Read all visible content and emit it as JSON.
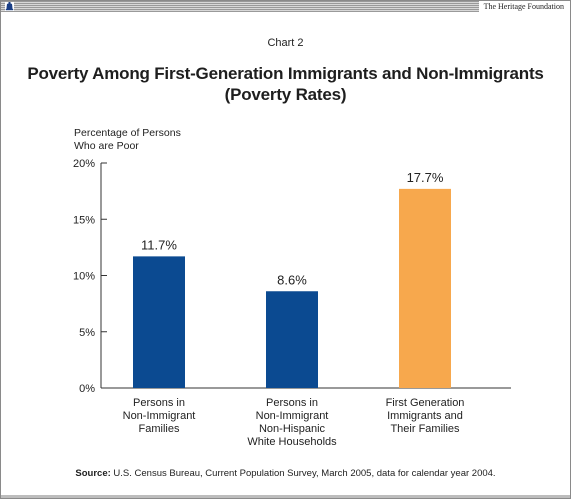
{
  "header": {
    "organization": "The Heritage Foundation",
    "logo_icon": "liberty-bell-icon"
  },
  "chart_number": "Chart 2",
  "title_line1": "Poverty Among First-Generation Immigrants and Non-Immigrants",
  "title_line2": "(Poverty Rates)",
  "y_axis_label_line1": "Percentage of Persons",
  "y_axis_label_line2": "Who are Poor",
  "source_label": "Source:",
  "source_text": " U.S. Census Bureau, Current Population Survey, March 2005, data for calendar year 2004.",
  "chart_data": {
    "type": "bar",
    "title": "Poverty Among First-Generation Immigrants and Non-Immigrants (Poverty Rates)",
    "ylabel": "Percentage of Persons Who are Poor",
    "ylim": [
      0,
      20
    ],
    "yticks": [
      0,
      5,
      10,
      15,
      20
    ],
    "ytick_labels": [
      "0%",
      "5%",
      "10%",
      "15%",
      "20%"
    ],
    "categories": [
      "Persons in Non-Immigrant Families",
      "Persons in Non-Immigrant Non-Hispanic White Households",
      "First Generation Immigrants and Their Families"
    ],
    "category_lines": [
      [
        "Persons in",
        "Non-Immigrant",
        "Families"
      ],
      [
        "Persons in",
        "Non-Immigrant",
        "Non-Hispanic",
        "White Households"
      ],
      [
        "First Generation",
        "Immigrants and",
        "Their Families"
      ]
    ],
    "values": [
      11.7,
      8.6,
      17.7
    ],
    "value_labels": [
      "11.7%",
      "8.6%",
      "17.7%"
    ],
    "colors": [
      "#0b4a91",
      "#0b4a91",
      "#f7a84d"
    ],
    "grid": false,
    "legend": "none"
  }
}
